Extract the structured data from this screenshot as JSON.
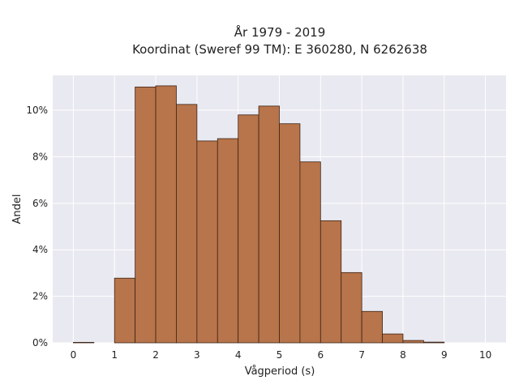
{
  "chart_data": {
    "type": "bar",
    "title_line1": "År 1979 - 2019",
    "title_line2": "Koordinat (Sweref 99 TM): E 360280, N 6262638",
    "xlabel": "Vågperiod (s)",
    "ylabel": "Andel",
    "xlim": [
      -0.5,
      10.5
    ],
    "ylim": [
      0,
      0.115
    ],
    "bin_width": 0.5,
    "x_ticks": [
      0,
      1,
      2,
      3,
      4,
      5,
      6,
      7,
      8,
      9,
      10
    ],
    "x_tick_labels": [
      "0",
      "1",
      "2",
      "3",
      "4",
      "5",
      "6",
      "7",
      "8",
      "9",
      "10"
    ],
    "y_ticks": [
      0,
      0.02,
      0.04,
      0.06,
      0.08,
      0.1
    ],
    "y_tick_labels": [
      "0%",
      "2%",
      "4%",
      "6%",
      "8%",
      "10%"
    ],
    "bins": [
      {
        "start": 0.0,
        "end": 0.5,
        "value": 0.0002
      },
      {
        "start": 0.5,
        "end": 1.0,
        "value": 0.0
      },
      {
        "start": 1.0,
        "end": 1.5,
        "value": 0.0278
      },
      {
        "start": 1.5,
        "end": 2.0,
        "value": 0.11
      },
      {
        "start": 2.0,
        "end": 2.5,
        "value": 0.1105
      },
      {
        "start": 2.5,
        "end": 3.0,
        "value": 0.1025
      },
      {
        "start": 3.0,
        "end": 3.5,
        "value": 0.0868
      },
      {
        "start": 3.5,
        "end": 4.0,
        "value": 0.0878
      },
      {
        "start": 4.0,
        "end": 4.5,
        "value": 0.098
      },
      {
        "start": 4.5,
        "end": 5.0,
        "value": 0.1018
      },
      {
        "start": 5.0,
        "end": 5.5,
        "value": 0.0942
      },
      {
        "start": 5.5,
        "end": 6.0,
        "value": 0.0778
      },
      {
        "start": 6.0,
        "end": 6.5,
        "value": 0.0525
      },
      {
        "start": 6.5,
        "end": 7.0,
        "value": 0.0302
      },
      {
        "start": 7.0,
        "end": 7.5,
        "value": 0.0135
      },
      {
        "start": 7.5,
        "end": 8.0,
        "value": 0.0038
      },
      {
        "start": 8.0,
        "end": 8.5,
        "value": 0.001
      },
      {
        "start": 8.5,
        "end": 9.0,
        "value": 0.0003
      }
    ],
    "bar_color": "#b8744a",
    "bar_edge_color": "#3b2416",
    "plot_background": "#e9e9f1",
    "grid_color": "#ffffff",
    "grid": true,
    "legend": "none"
  }
}
